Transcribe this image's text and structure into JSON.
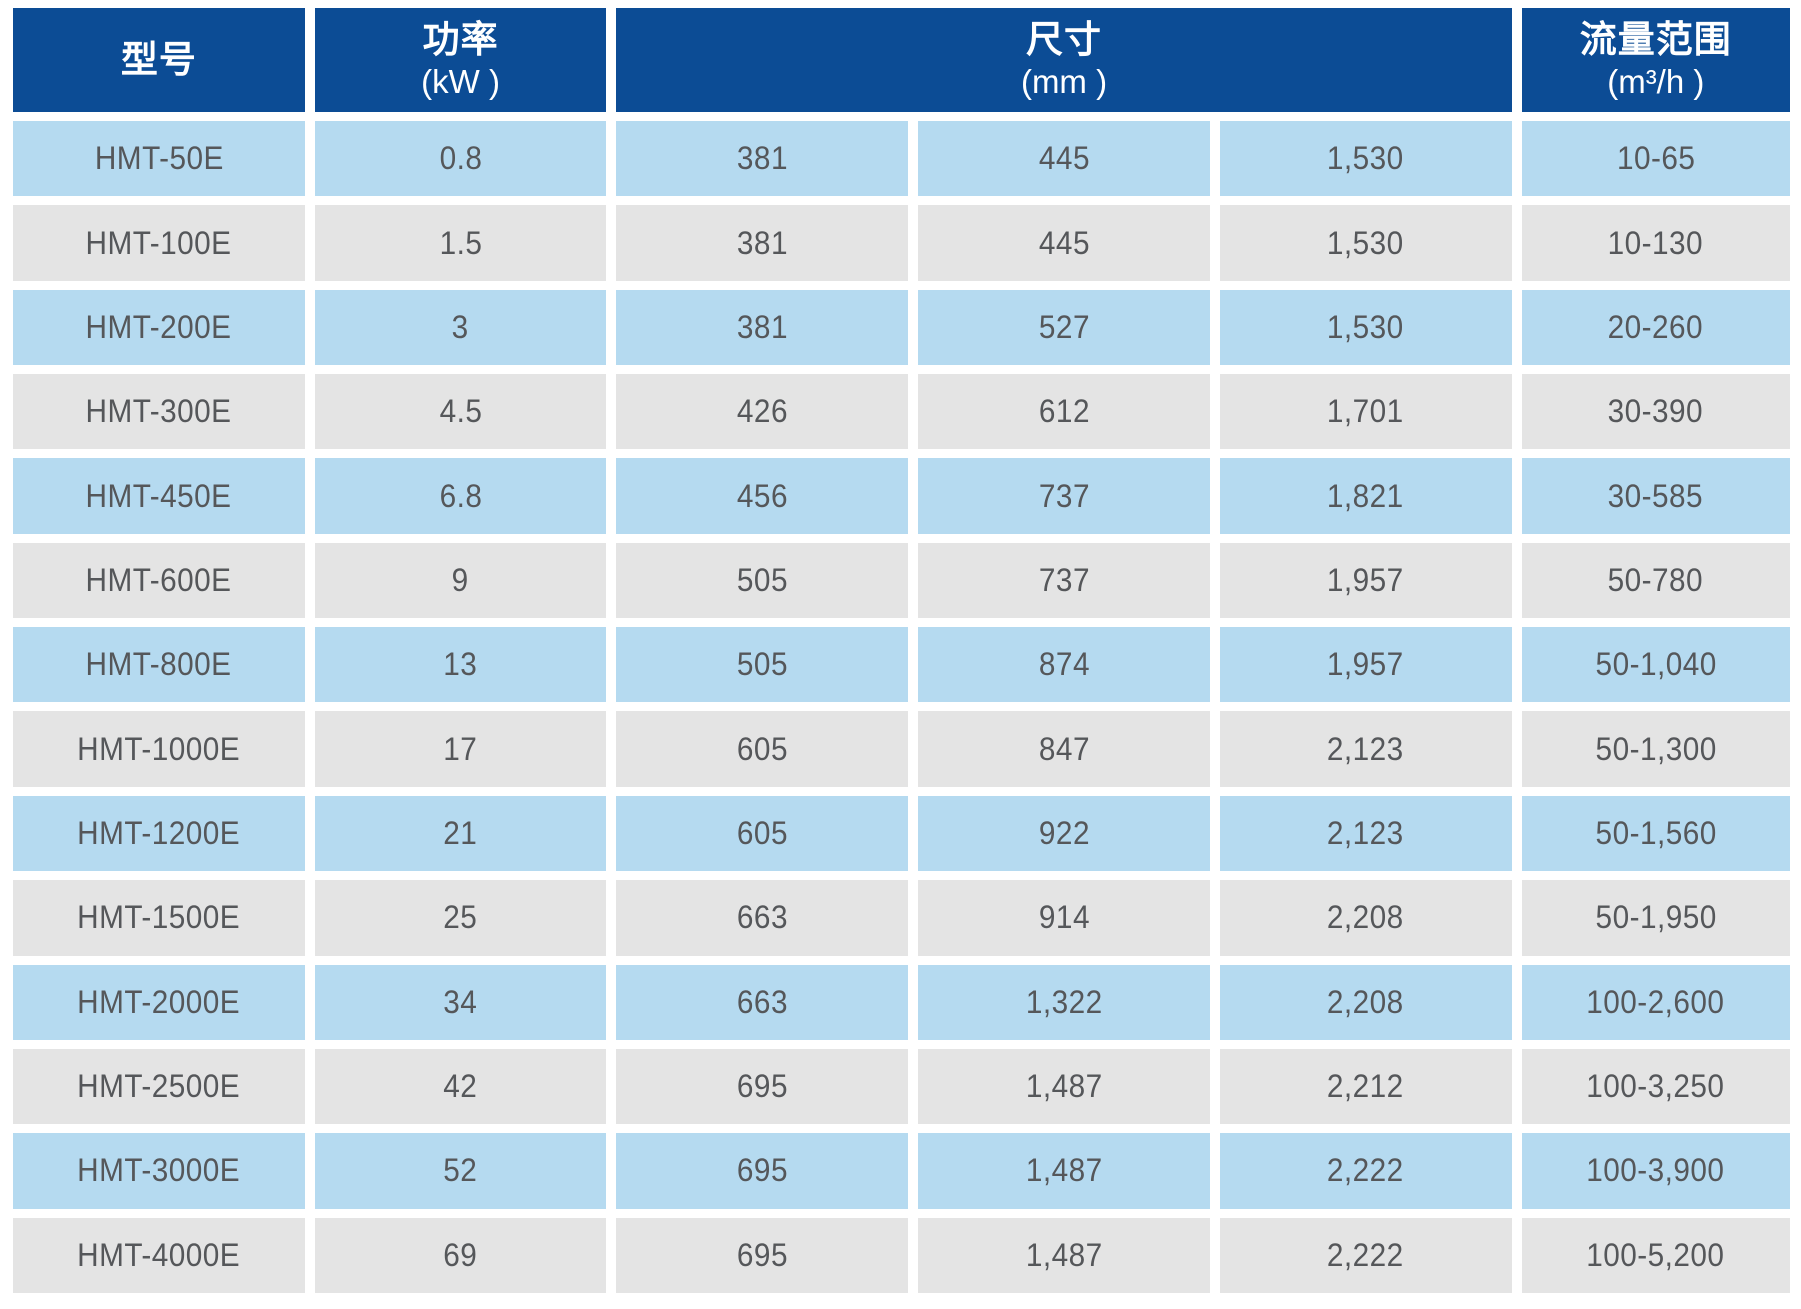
{
  "colors": {
    "header_bg": "#0C4C95",
    "header_text": "#FFFFFF",
    "row_blue": "#B5DAF0",
    "row_gray": "#E4E4E4",
    "cell_text": "#55575A",
    "page_bg": "#FFFFFF"
  },
  "table": {
    "header": {
      "model": {
        "title": "型号",
        "unit": ""
      },
      "power": {
        "title": "功率",
        "unit": "(kW )"
      },
      "size": {
        "title": "尺寸",
        "unit": "(mm )"
      },
      "flow": {
        "title": "流量范围",
        "unit": "(m³/h )"
      }
    },
    "rows": [
      [
        "HMT-50E",
        "0.8",
        "381",
        "445",
        "1,530",
        "10-65"
      ],
      [
        "HMT-100E",
        "1.5",
        "381",
        "445",
        "1,530",
        "10-130"
      ],
      [
        "HMT-200E",
        "3",
        "381",
        "527",
        "1,530",
        "20-260"
      ],
      [
        "HMT-300E",
        "4.5",
        "426",
        "612",
        "1,701",
        "30-390"
      ],
      [
        "HMT-450E",
        "6.8",
        "456",
        "737",
        "1,821",
        "30-585"
      ],
      [
        "HMT-600E",
        "9",
        "505",
        "737",
        "1,957",
        "50-780"
      ],
      [
        "HMT-800E",
        "13",
        "505",
        "874",
        "1,957",
        "50-1,040"
      ],
      [
        "HMT-1000E",
        "17",
        "605",
        "847",
        "2,123",
        "50-1,300"
      ],
      [
        "HMT-1200E",
        "21",
        "605",
        "922",
        "2,123",
        "50-1,560"
      ],
      [
        "HMT-1500E",
        "25",
        "663",
        "914",
        "2,208",
        "50-1,950"
      ],
      [
        "HMT-2000E",
        "34",
        "663",
        "1,322",
        "2,208",
        "100-2,600"
      ],
      [
        "HMT-2500E",
        "42",
        "695",
        "1,487",
        "2,212",
        "100-3,250"
      ],
      [
        "HMT-3000E",
        "52",
        "695",
        "1,487",
        "2,222",
        "100-3,900"
      ],
      [
        "HMT-4000E",
        "69",
        "695",
        "1,487",
        "2,222",
        "100-5,200"
      ]
    ]
  }
}
